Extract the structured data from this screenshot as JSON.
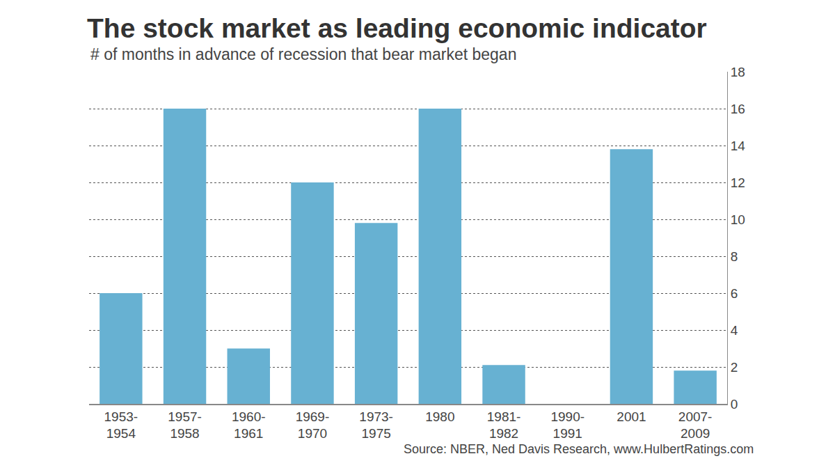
{
  "chart_data": {
    "type": "bar",
    "title": "The stock market as leading economic indicator",
    "subtitle": "# of months in advance of recession that bear market began",
    "source": "Source: NBER, Ned Davis Research, www.HulbertRatings.com",
    "categories": [
      "1953-1954",
      "1957-1958",
      "1960-1961",
      "1969-1970",
      "1973-1975",
      "1980",
      "1981-1982",
      "1990-1991",
      "2001",
      "2007-2009"
    ],
    "values": [
      6,
      16,
      3,
      12,
      9.8,
      16,
      2.1,
      0,
      13.8,
      1.8
    ],
    "color": "#67b1d2",
    "ylim": [
      0,
      18
    ],
    "yticks": [
      0,
      2,
      4,
      6,
      8,
      10,
      12,
      14,
      16,
      18
    ],
    "grid": true
  }
}
